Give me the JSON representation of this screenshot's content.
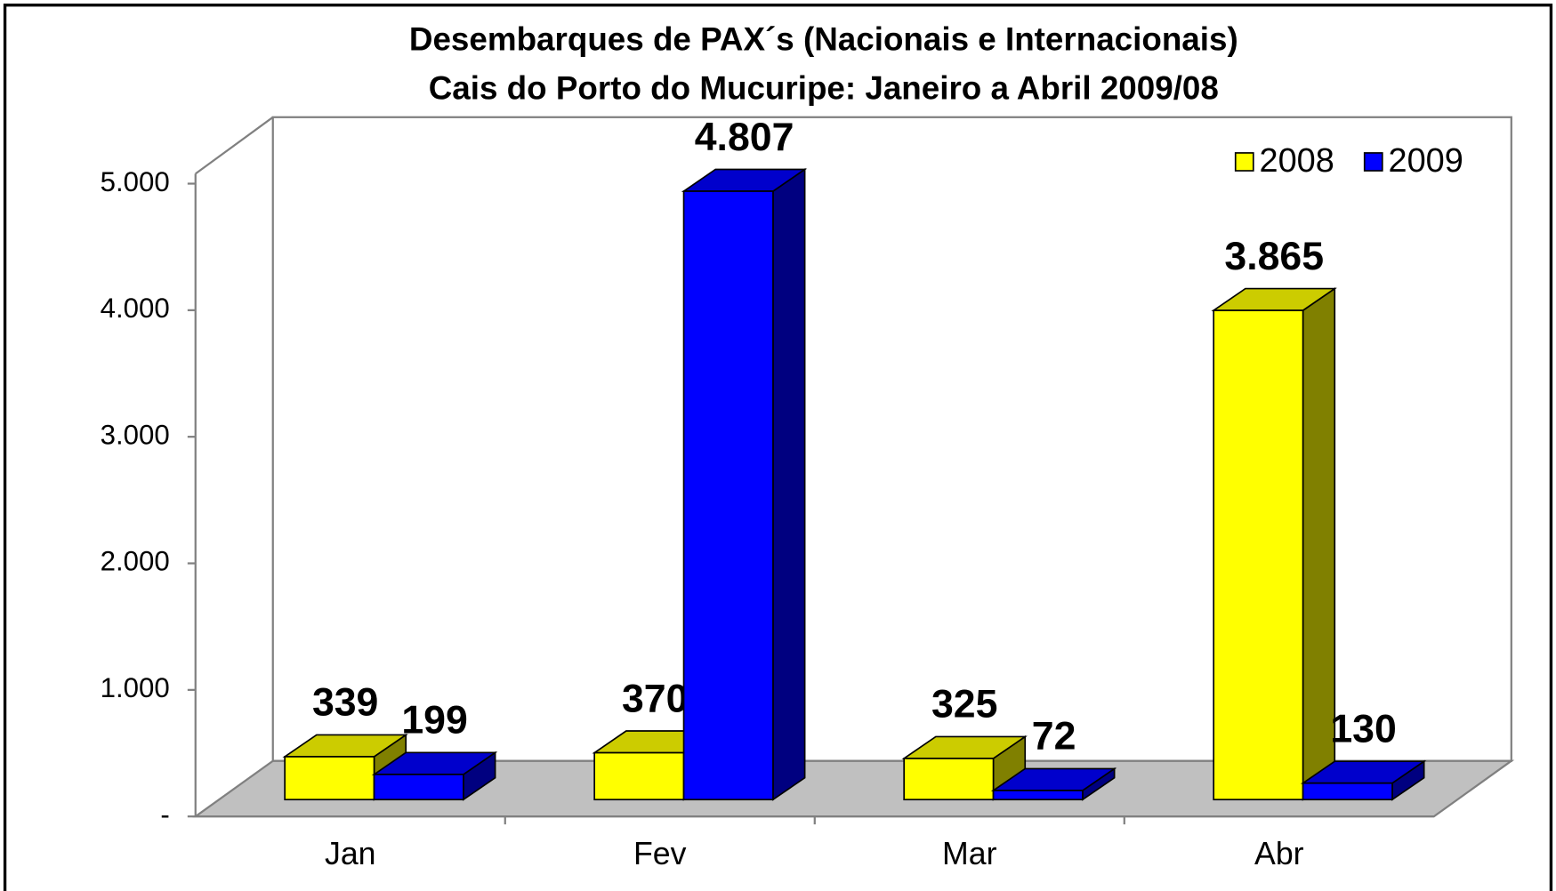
{
  "chart_data": {
    "type": "bar3d",
    "title": "Desembarques de PAX´s (Nacionais e Internacionais)",
    "subtitle": "Cais do Porto do Mucuripe: Janeiro a Abril 2009/08",
    "categories": [
      "Jan",
      "Fev",
      "Mar",
      "Abr"
    ],
    "series": [
      {
        "name": "2008",
        "color": "#ffff00",
        "values": [
          339,
          370,
          325,
          3865
        ],
        "value_labels": [
          "339",
          "370",
          "325",
          "3.865"
        ]
      },
      {
        "name": "2009",
        "color": "#0000ff",
        "values": [
          199,
          4807,
          72,
          130
        ],
        "value_labels": [
          "199",
          "4.807",
          "72",
          "130"
        ]
      }
    ],
    "ylim": [
      0,
      5000
    ],
    "yticks": [
      {
        "value": 0,
        "label": "-"
      },
      {
        "value": 1000,
        "label": "1.000"
      },
      {
        "value": 2000,
        "label": "2.000"
      },
      {
        "value": 3000,
        "label": "3.000"
      },
      {
        "value": 4000,
        "label": "4.000"
      },
      {
        "value": 5000,
        "label": "5.000"
      }
    ],
    "legend": "upper right"
  }
}
